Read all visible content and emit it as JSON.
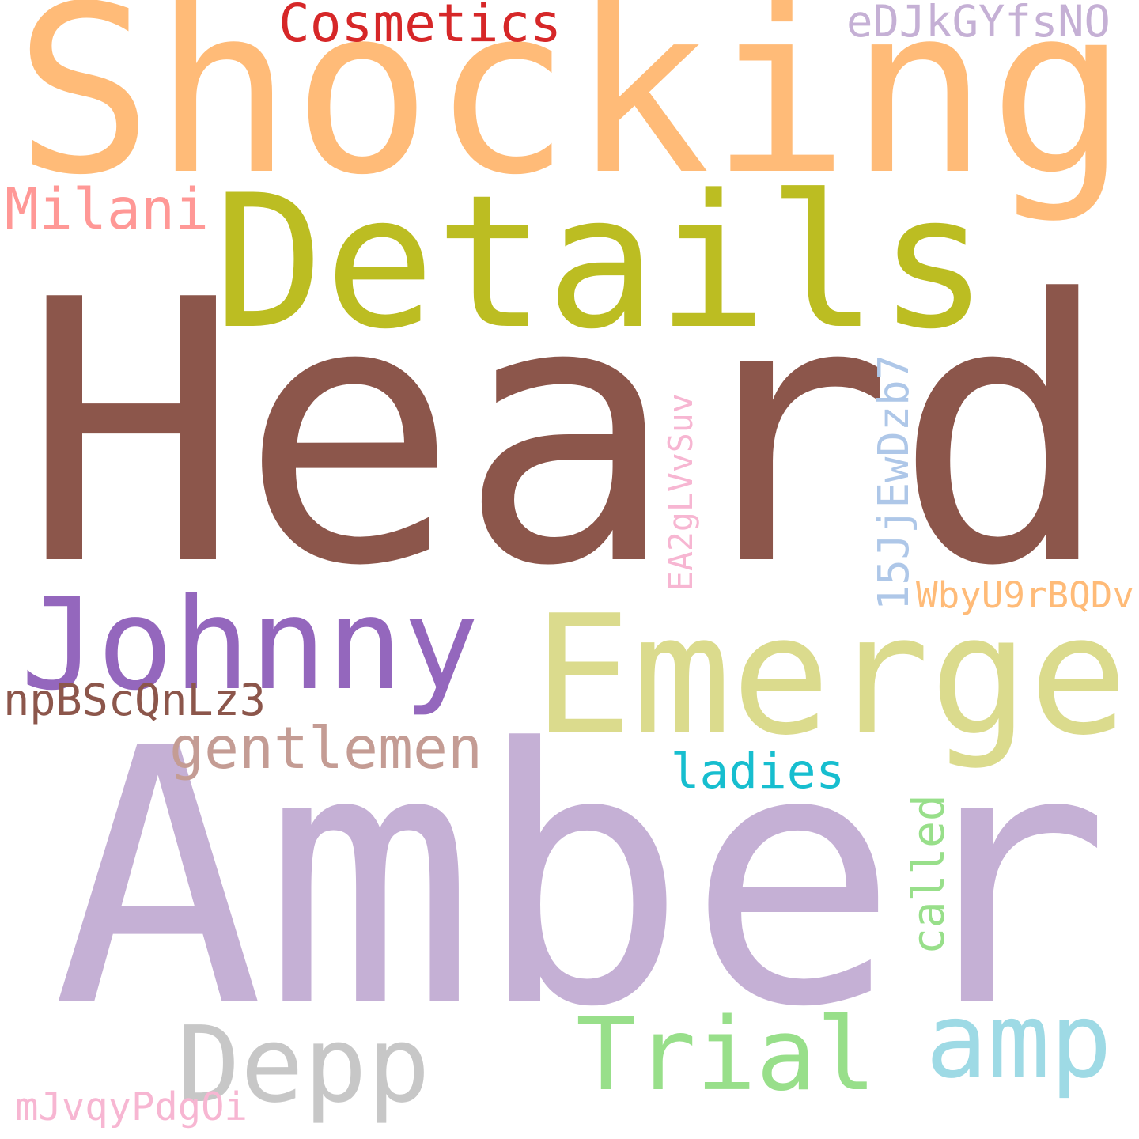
{
  "cloud": {
    "words": [
      {
        "id": "shocking",
        "text": "Shocking",
        "color": "#ffbb78"
      },
      {
        "id": "heard",
        "text": "Heard",
        "color": "#8c564b"
      },
      {
        "id": "amber",
        "text": "Amber",
        "color": "#c5b0d5"
      },
      {
        "id": "details",
        "text": "Details",
        "color": "#bcbd22"
      },
      {
        "id": "emerge",
        "text": "Emerge",
        "color": "#dbdb8d"
      },
      {
        "id": "johnny",
        "text": "Johnny",
        "color": "#9467bd"
      },
      {
        "id": "depp",
        "text": "Depp",
        "color": "#c7c7c7"
      },
      {
        "id": "trial",
        "text": "Trial",
        "color": "#98df8a"
      },
      {
        "id": "amp",
        "text": "amp",
        "color": "#9edae5"
      },
      {
        "id": "cosmetics",
        "text": "Cosmetics",
        "color": "#d62728"
      },
      {
        "id": "edjk",
        "text": "eDJkGYfsNO",
        "color": "#c5b0d5"
      },
      {
        "id": "milani",
        "text": "Milani",
        "color": "#ff9896"
      },
      {
        "id": "gentlemen",
        "text": "gentlemen",
        "color": "#c49c94"
      },
      {
        "id": "ladies",
        "text": "ladies",
        "color": "#17becf"
      },
      {
        "id": "npbs",
        "text": "npBScQnLz3",
        "color": "#8c564b"
      },
      {
        "id": "wbyu",
        "text": "WbyU9rBQDv",
        "color": "#ffbb78"
      },
      {
        "id": "mjvq",
        "text": "mJvqyPdgOi",
        "color": "#f7b6d2"
      },
      {
        "id": "ea2g",
        "text": "EA2gLVvSuv",
        "color": "#f7b6d2"
      },
      {
        "id": "jj15",
        "text": "15JjEwDzb7",
        "color": "#aec7e8"
      },
      {
        "id": "called",
        "text": "called",
        "color": "#98df8a"
      }
    ]
  }
}
